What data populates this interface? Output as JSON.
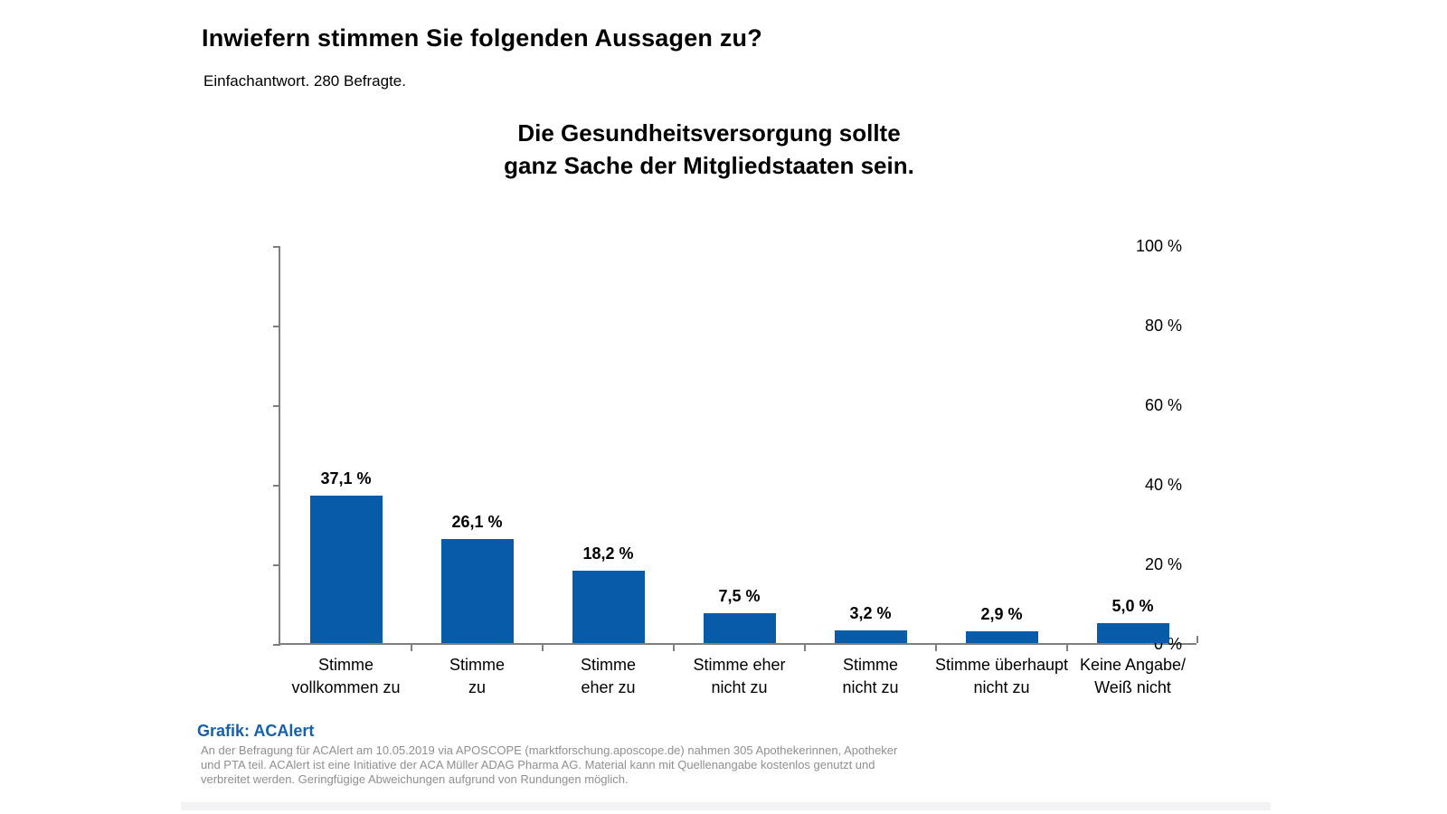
{
  "page": {
    "title": "Inwiefern stimmen Sie folgenden Aussagen zu?",
    "subtitle": "Einfachantwort. 280 Befragte."
  },
  "chart_data": {
    "type": "bar",
    "title": "Die Gesundheitsversorgung sollte ganz Sache der Mitgliedstaaten sein.",
    "title_lines": [
      "Die Gesundheitsversorgung sollte",
      "ganz Sache der Mitgliedstaaten sein."
    ],
    "categories": [
      "Stimme vollkommen zu",
      "Stimme zu",
      "Stimme eher zu",
      "Stimme eher nicht zu",
      "Stimme nicht zu",
      "Stimme überhaupt nicht zu",
      "Keine Angabe/ Weiß nicht"
    ],
    "category_lines": [
      [
        "Stimme",
        "vollkommen zu"
      ],
      [
        "Stimme",
        "zu"
      ],
      [
        "Stimme",
        "eher zu"
      ],
      [
        "Stimme eher",
        "nicht zu"
      ],
      [
        "Stimme",
        "nicht zu"
      ],
      [
        "Stimme überhaupt",
        "nicht zu"
      ],
      [
        "Keine Angabe/",
        "Weiß nicht"
      ]
    ],
    "values": [
      37.1,
      26.1,
      18.2,
      7.5,
      3.2,
      2.9,
      5.0
    ],
    "value_labels": [
      "37,1 %",
      "26,1 %",
      "18,2 %",
      "7,5 %",
      "3,2 %",
      "2,9 %",
      "5,0 %"
    ],
    "xlabel": "",
    "ylabel": "",
    "ylim": [
      0,
      100
    ],
    "y_ticks": [
      0,
      20,
      40,
      60,
      80,
      100
    ],
    "y_tick_labels": [
      "0 %",
      "20 %",
      "40 %",
      "60 %",
      "80 %",
      "100 %"
    ],
    "grid": false,
    "legend": false,
    "bar_color": "#075ba8",
    "axis_color": "#7f7f7f"
  },
  "footer": {
    "credit": "Grafik: ACAlert",
    "disclaimer_lines": [
      "An der Befragung für ACAlert am 10.05.2019 via APOSCOPE (marktforschung.aposcope.de) nahmen 305 Apothekerinnen, Apotheker",
      "und PTA teil. ACAlert ist eine Initiative der ACA Müller ADAG Pharma AG. Material kann mit Quellenangabe kostenlos genutzt und",
      "verbreitet werden. Geringfügige Abweichungen aufgrund von Rundungen möglich."
    ]
  }
}
